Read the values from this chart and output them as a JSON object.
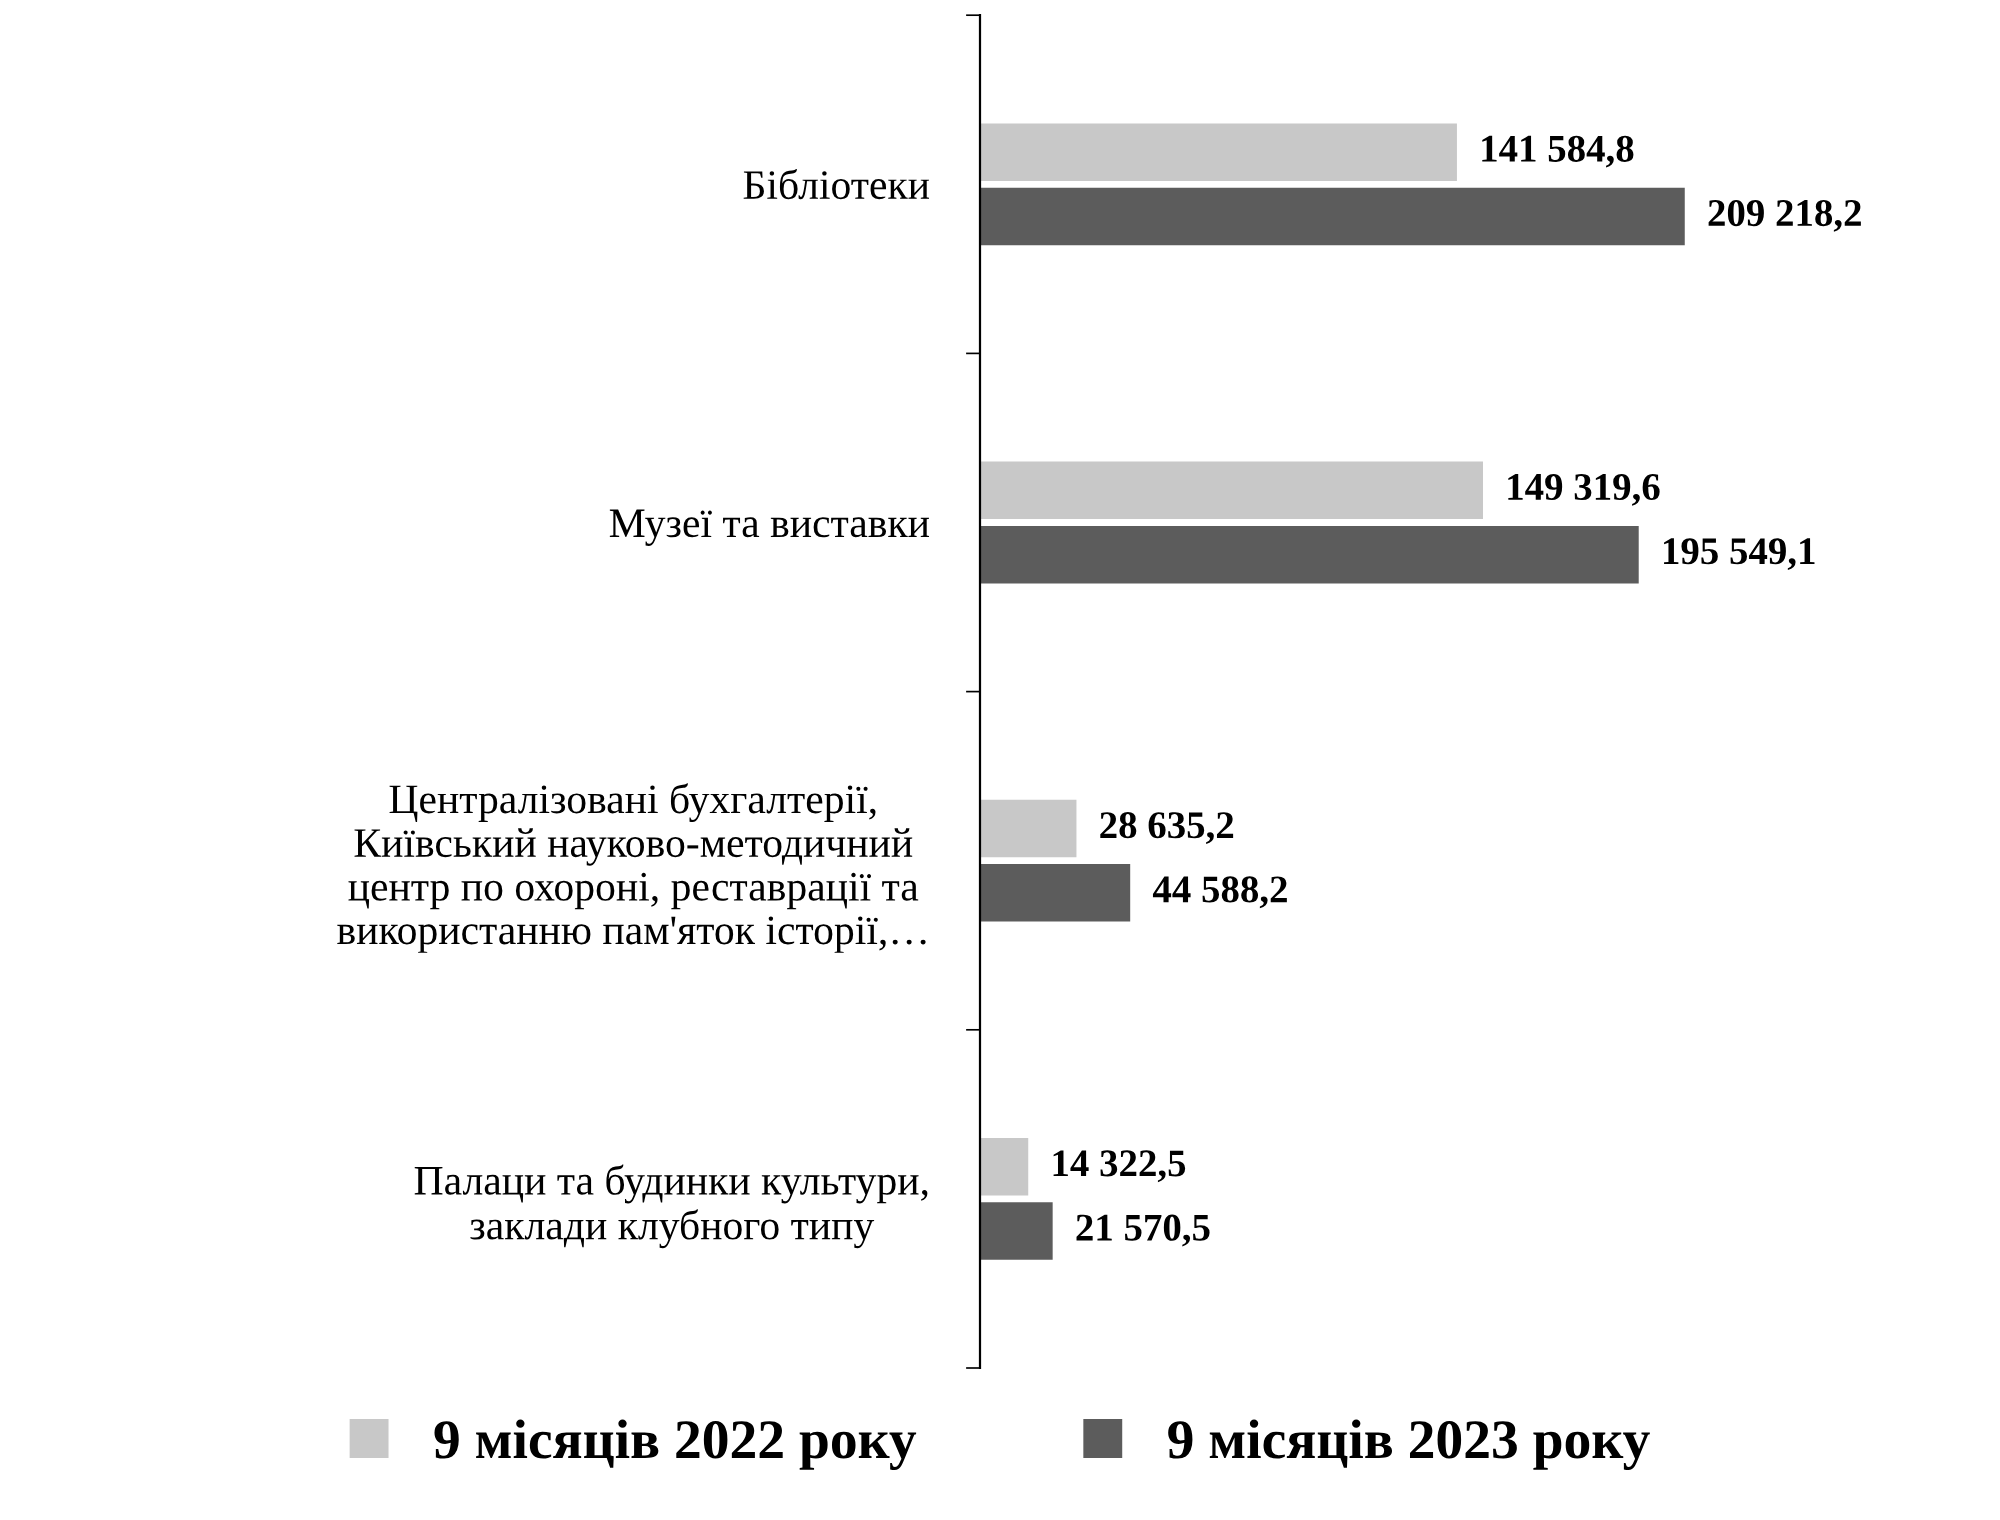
{
  "chart_data": {
    "type": "bar",
    "orientation": "horizontal",
    "categories": [
      "Бібліотеки",
      "Музеї та виставки",
      "Централізовані бухгалтерії,\nКиївський науково-методичний\nцентр по охороні, реставрації та\nвикористанню пам'яток історії,…",
      "Палаци та будинки культури,\nзаклади клубного типу"
    ],
    "series": [
      {
        "name": "9 місяців 2022 року",
        "color": "#c8c8c8",
        "values": [
          141584.8,
          149319.6,
          28635.2,
          14322.5
        ],
        "value_labels": [
          "141 584,8",
          "149 319,6",
          "28 635,2",
          "14 322,5"
        ]
      },
      {
        "name": "9 місяців 2023 року",
        "color": "#5c5c5c",
        "values": [
          209218.2,
          195549.1,
          44588.2,
          21570.5
        ],
        "value_labels": [
          "209 218,2",
          "195 549,1",
          "44 588,2",
          "21 570,5"
        ]
      }
    ],
    "legend": "bottom",
    "grid": false,
    "tick_labels": "y"
  }
}
